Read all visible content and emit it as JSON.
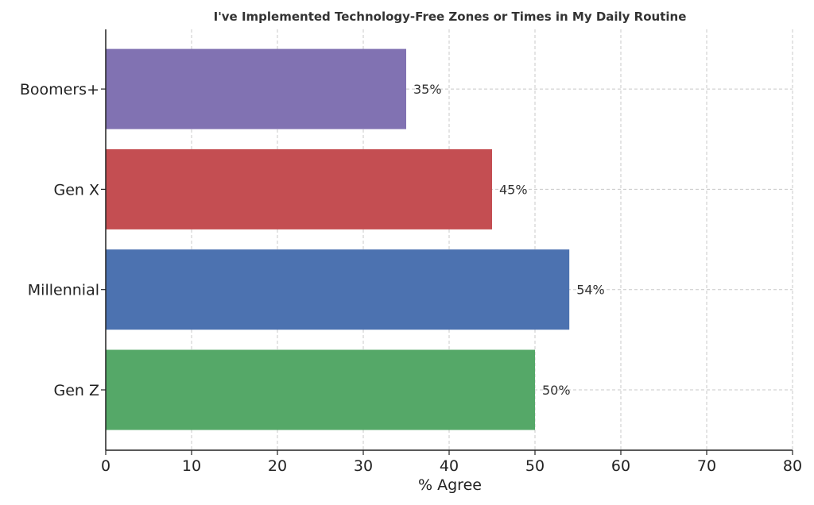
{
  "chart_data": {
    "type": "bar",
    "orientation": "horizontal",
    "title": "I've Implemented Technology-Free Zones or Times in My Daily Routine",
    "xlabel": "% Agree",
    "ylabel": "",
    "categories": [
      "Gen Z",
      "Millennial",
      "Gen X",
      "Boomers+"
    ],
    "values": [
      50,
      54,
      45,
      35
    ],
    "value_labels": [
      "50%",
      "54%",
      "45%",
      "35%"
    ],
    "colors": [
      "#55a868",
      "#4c72b0",
      "#c44e52",
      "#8172b2"
    ],
    "xlim": [
      0,
      80
    ],
    "xticks": [
      0,
      10,
      20,
      30,
      40,
      50,
      60,
      70,
      80
    ],
    "grid": true
  }
}
